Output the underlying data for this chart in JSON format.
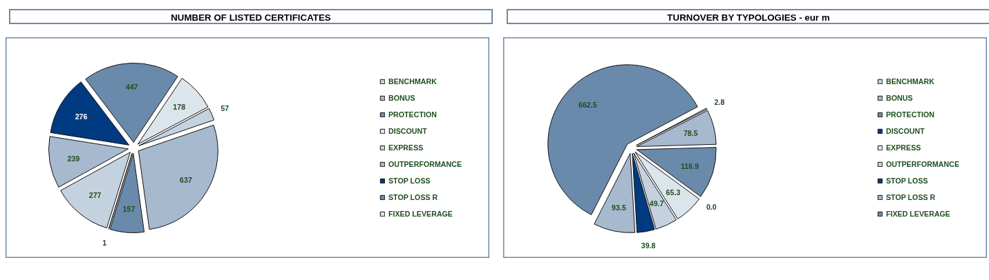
{
  "chart_data": [
    {
      "type": "pie",
      "title": "NUMBER OF LISTED CERTIFICATES",
      "categories": [
        "BENCHMARK",
        "BONUS",
        "PROTECTION",
        "DISCOUNT",
        "EXPRESS",
        "OUTPERFORMANCE",
        "STOP LOSS",
        "STOP LOSS R",
        "FIXED LEVERAGE"
      ],
      "values": [
        57,
        637,
        157,
        1,
        277,
        239,
        276,
        447,
        178
      ],
      "colors": [
        "#c4d2e0",
        "#a7b9ce",
        "#6a8aab",
        "#dce4ec",
        "#c4d2e0",
        "#a7b9ce",
        "#003a80",
        "#6a8aab",
        "#dce4ec"
      ],
      "data_labels": true,
      "legend": "right"
    },
    {
      "type": "pie",
      "title": "TURNOVER BY TYPOLOGIES - eur m",
      "categories": [
        "BENCHMARK",
        "BONUS",
        "PROTECTION",
        "DISCOUNT",
        "EXPRESS",
        "OUTPERFORMANCE",
        "STOP LOSS",
        "STOP LOSS R",
        "FIXED LEVERAGE"
      ],
      "values": [
        2.8,
        78.5,
        116.9,
        0.0,
        65.3,
        49.7,
        39.8,
        93.5,
        662.5
      ],
      "value_labels": [
        "2.8",
        "78.5",
        "116.9",
        "0.0",
        "65.3",
        "49.7",
        "39.8",
        "93.5",
        "662.5"
      ],
      "colors": [
        "#c4d2e0",
        "#a7b9ce",
        "#6a8aab",
        "#003a80",
        "#dce4ec",
        "#c4d2e0",
        "#003a80",
        "#a7b9ce",
        "#6a8aab"
      ],
      "legend": "right"
    }
  ]
}
